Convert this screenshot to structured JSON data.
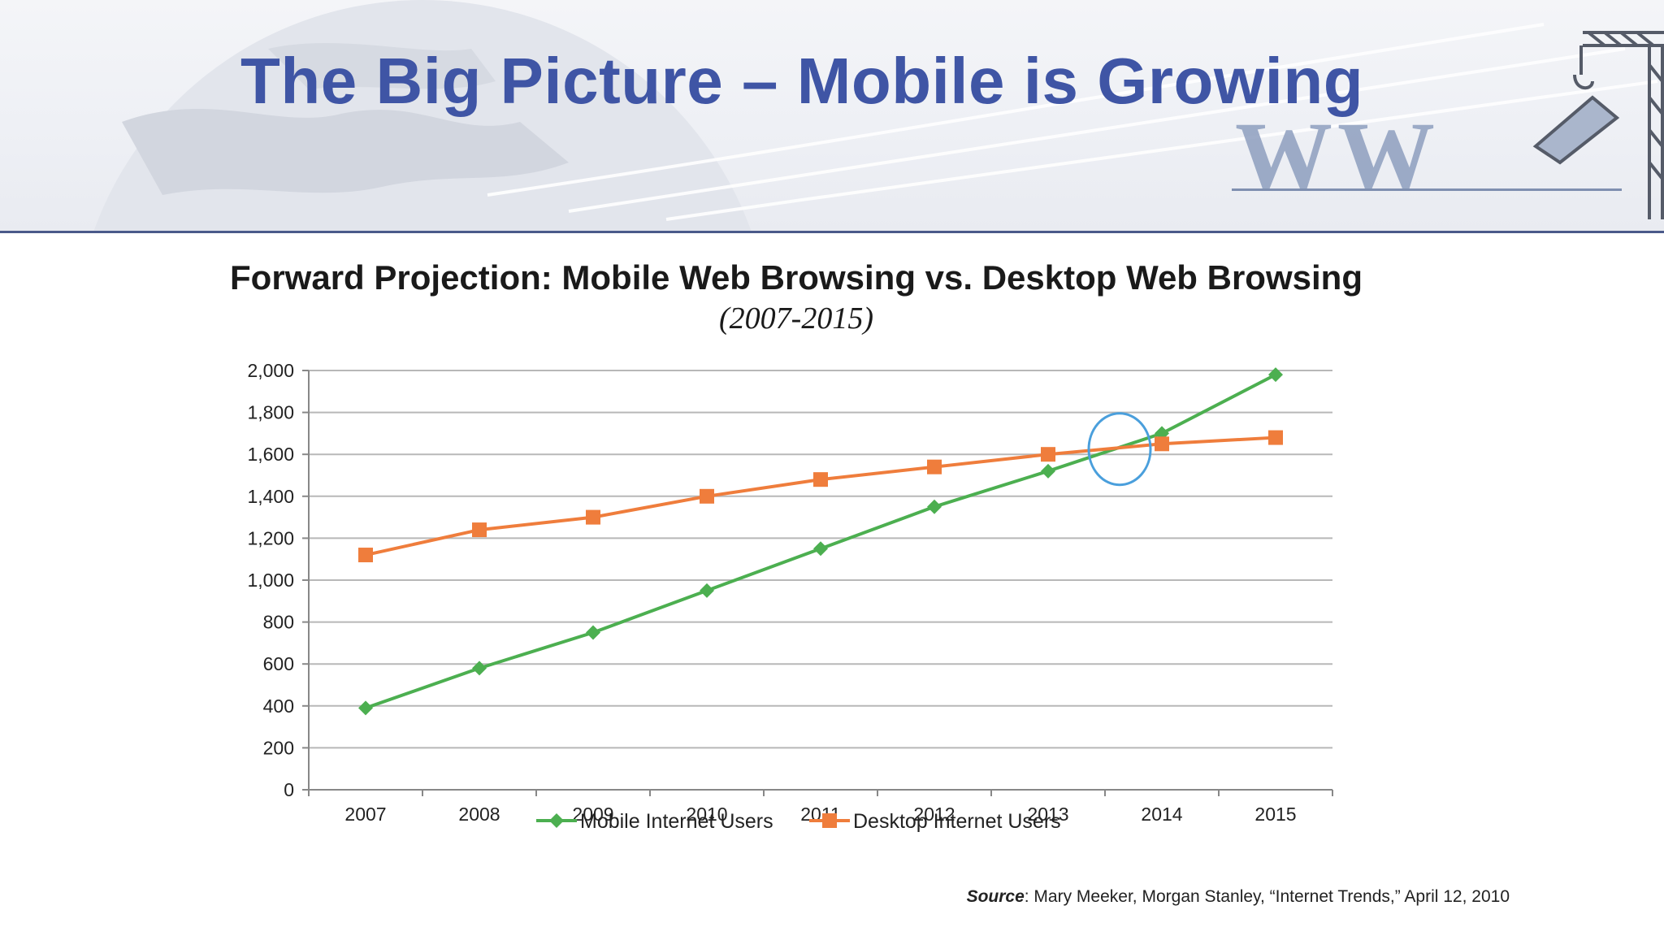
{
  "slide": {
    "title": "The Big Picture – Mobile is Growing"
  },
  "header_art": {
    "logo_text": "WW"
  },
  "colors": {
    "title": "#3f55a5",
    "mobile": "#4caf50",
    "desktop": "#ef7d3c",
    "highlight": "#4a9fdc",
    "grid": "#b8b8b8"
  },
  "chart_data": {
    "type": "line",
    "title": "Forward Projection: Mobile Web Browsing vs. Desktop Web Browsing",
    "subtitle": "(2007-2015)",
    "categories": [
      "2007",
      "2008",
      "2009",
      "2010",
      "2011",
      "2012",
      "2013",
      "2014",
      "2015"
    ],
    "y_ticks": [
      "0",
      "200",
      "400",
      "600",
      "800",
      "1,000",
      "1,200",
      "1,400",
      "1,600",
      "1,800",
      "2,000"
    ],
    "ylim": [
      0,
      2000
    ],
    "grid": true,
    "legend_position": "bottom",
    "series": [
      {
        "name": "Mobile Internet Users",
        "marker": "diamond",
        "color": "#4caf50",
        "values": [
          390,
          580,
          750,
          950,
          1150,
          1350,
          1520,
          1700,
          1980
        ]
      },
      {
        "name": "Desktop Internet Users",
        "marker": "square",
        "color": "#ef7d3c",
        "values": [
          1120,
          1240,
          1300,
          1400,
          1480,
          1540,
          1600,
          1650,
          1680
        ]
      }
    ],
    "annotation": {
      "shape": "circle",
      "x_between": [
        "2013",
        "2014"
      ],
      "y": 1625
    }
  },
  "source": {
    "label": "Source",
    "text": ": Mary Meeker, Morgan Stanley, “Internet Trends,” April 12, 2010"
  }
}
